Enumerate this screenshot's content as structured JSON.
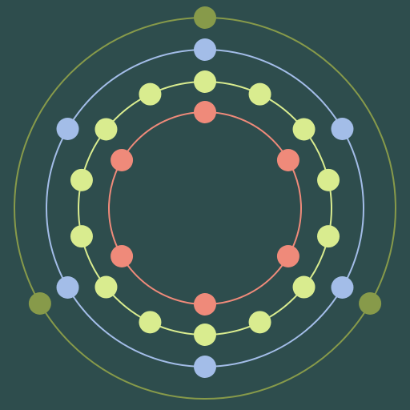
{
  "canvas": {
    "background": "#2e4d4d"
  },
  "rings": [
    {
      "name": "inner-ring",
      "color": "#ef8a7a",
      "dot_count": 6,
      "first_angle_deg": 0
    },
    {
      "name": "third-ring",
      "color": "#d9ec8f",
      "dot_count": 14,
      "first_angle_deg": 0
    },
    {
      "name": "second-ring",
      "color": "#a3bde8",
      "dot_count": 6,
      "first_angle_deg": 0
    },
    {
      "name": "outer-ring",
      "color": "#879a4a",
      "dot_count": 3,
      "first_angle_deg": 0
    }
  ]
}
